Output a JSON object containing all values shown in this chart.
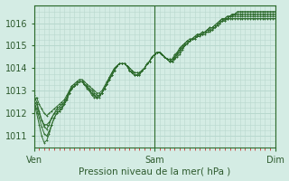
{
  "xlabel": "Pression niveau de la mer( hPa )",
  "background_color": "#d4ece4",
  "grid_color": "#b8d8ce",
  "line_color": "#2d6b2d",
  "tick_color": "#cc3333",
  "text_color": "#2d5a2d",
  "ylim": [
    1010.5,
    1016.8
  ],
  "yticks": [
    1011,
    1012,
    1013,
    1014,
    1015,
    1016
  ],
  "xtick_positions": [
    0,
    48,
    96
  ],
  "xtick_labels": [
    "Ven",
    "Sam",
    "Dim"
  ],
  "num_points": 97,
  "series": [
    [
      1012.5,
      1012.7,
      1012.4,
      1012.2,
      1012.0,
      1011.9,
      1012.0,
      1012.1,
      1012.2,
      1012.3,
      1012.4,
      1012.5,
      1012.6,
      1012.8,
      1013.0,
      1013.2,
      1013.3,
      1013.4,
      1013.5,
      1013.5,
      1013.4,
      1013.3,
      1013.2,
      1013.1,
      1013.0,
      1012.9,
      1012.9,
      1013.0,
      1013.2,
      1013.4,
      1013.6,
      1013.8,
      1014.0,
      1014.1,
      1014.2,
      1014.2,
      1014.2,
      1014.1,
      1014.0,
      1013.9,
      1013.8,
      1013.8,
      1013.8,
      1013.9,
      1014.0,
      1014.2,
      1014.3,
      1014.5,
      1014.6,
      1014.7,
      1014.7,
      1014.6,
      1014.5,
      1014.4,
      1014.4,
      1014.3,
      1014.4,
      1014.5,
      1014.6,
      1014.8,
      1015.0,
      1015.1,
      1015.2,
      1015.3,
      1015.3,
      1015.4,
      1015.4,
      1015.5,
      1015.5,
      1015.6,
      1015.6,
      1015.7,
      1015.8,
      1015.9,
      1016.0,
      1016.1,
      1016.1,
      1016.2,
      1016.2,
      1016.2,
      1016.2,
      1016.2,
      1016.2,
      1016.2,
      1016.2,
      1016.2,
      1016.2,
      1016.2,
      1016.2,
      1016.2,
      1016.2,
      1016.2,
      1016.2,
      1016.2,
      1016.2,
      1016.2,
      1016.2
    ],
    [
      1012.5,
      1012.4,
      1012.0,
      1011.7,
      1011.5,
      1011.5,
      1011.6,
      1011.8,
      1012.0,
      1012.1,
      1012.2,
      1012.3,
      1012.5,
      1012.7,
      1012.9,
      1013.1,
      1013.2,
      1013.3,
      1013.4,
      1013.4,
      1013.3,
      1013.2,
      1013.1,
      1013.0,
      1012.9,
      1012.8,
      1012.8,
      1012.9,
      1013.1,
      1013.3,
      1013.6,
      1013.8,
      1014.0,
      1014.1,
      1014.2,
      1014.2,
      1014.2,
      1014.1,
      1014.0,
      1013.9,
      1013.8,
      1013.8,
      1013.8,
      1013.9,
      1014.0,
      1014.2,
      1014.3,
      1014.5,
      1014.6,
      1014.7,
      1014.7,
      1014.6,
      1014.5,
      1014.4,
      1014.3,
      1014.3,
      1014.4,
      1014.6,
      1014.7,
      1014.9,
      1015.0,
      1015.1,
      1015.2,
      1015.3,
      1015.3,
      1015.4,
      1015.5,
      1015.5,
      1015.6,
      1015.6,
      1015.7,
      1015.7,
      1015.8,
      1015.9,
      1016.0,
      1016.1,
      1016.1,
      1016.2,
      1016.3,
      1016.3,
      1016.3,
      1016.3,
      1016.3,
      1016.3,
      1016.3,
      1016.3,
      1016.3,
      1016.3,
      1016.3,
      1016.3,
      1016.3,
      1016.3,
      1016.3,
      1016.3,
      1016.3,
      1016.3,
      1016.3
    ],
    [
      1012.5,
      1012.2,
      1011.8,
      1011.4,
      1011.1,
      1011.0,
      1011.2,
      1011.5,
      1011.8,
      1012.0,
      1012.1,
      1012.2,
      1012.4,
      1012.6,
      1012.9,
      1013.1,
      1013.2,
      1013.3,
      1013.4,
      1013.4,
      1013.3,
      1013.2,
      1013.0,
      1012.9,
      1012.8,
      1012.7,
      1012.8,
      1012.9,
      1013.1,
      1013.3,
      1013.5,
      1013.7,
      1013.9,
      1014.1,
      1014.2,
      1014.2,
      1014.2,
      1014.1,
      1013.9,
      1013.8,
      1013.7,
      1013.7,
      1013.8,
      1013.9,
      1014.0,
      1014.2,
      1014.3,
      1014.5,
      1014.6,
      1014.7,
      1014.7,
      1014.6,
      1014.5,
      1014.4,
      1014.3,
      1014.3,
      1014.5,
      1014.6,
      1014.8,
      1014.9,
      1015.0,
      1015.1,
      1015.2,
      1015.3,
      1015.4,
      1015.4,
      1015.5,
      1015.5,
      1015.6,
      1015.7,
      1015.7,
      1015.8,
      1015.8,
      1015.9,
      1016.0,
      1016.1,
      1016.2,
      1016.2,
      1016.3,
      1016.3,
      1016.4,
      1016.4,
      1016.4,
      1016.4,
      1016.4,
      1016.4,
      1016.4,
      1016.4,
      1016.4,
      1016.4,
      1016.4,
      1016.4,
      1016.4,
      1016.4,
      1016.4,
      1016.4,
      1016.4
    ],
    [
      1012.5,
      1012.0,
      1011.5,
      1011.0,
      1010.7,
      1010.8,
      1011.1,
      1011.5,
      1011.8,
      1012.0,
      1012.1,
      1012.2,
      1012.4,
      1012.6,
      1012.9,
      1013.1,
      1013.2,
      1013.3,
      1013.4,
      1013.4,
      1013.3,
      1013.1,
      1013.0,
      1012.8,
      1012.7,
      1012.7,
      1012.7,
      1012.9,
      1013.1,
      1013.3,
      1013.5,
      1013.7,
      1013.9,
      1014.1,
      1014.2,
      1014.2,
      1014.2,
      1014.1,
      1013.9,
      1013.8,
      1013.7,
      1013.7,
      1013.7,
      1013.9,
      1014.0,
      1014.2,
      1014.3,
      1014.5,
      1014.6,
      1014.7,
      1014.7,
      1014.6,
      1014.5,
      1014.4,
      1014.3,
      1014.4,
      1014.5,
      1014.7,
      1014.8,
      1015.0,
      1015.1,
      1015.2,
      1015.3,
      1015.3,
      1015.4,
      1015.5,
      1015.5,
      1015.6,
      1015.6,
      1015.7,
      1015.8,
      1015.8,
      1015.9,
      1016.0,
      1016.1,
      1016.2,
      1016.2,
      1016.3,
      1016.3,
      1016.4,
      1016.4,
      1016.5,
      1016.5,
      1016.5,
      1016.5,
      1016.5,
      1016.5,
      1016.5,
      1016.5,
      1016.5,
      1016.5,
      1016.5,
      1016.5,
      1016.5,
      1016.5,
      1016.5,
      1016.5
    ],
    [
      1012.8,
      1012.5,
      1012.1,
      1011.7,
      1011.4,
      1011.3,
      1011.5,
      1011.8,
      1012.0,
      1012.2,
      1012.3,
      1012.4,
      1012.5,
      1012.7,
      1013.0,
      1013.2,
      1013.3,
      1013.4,
      1013.4,
      1013.4,
      1013.3,
      1013.2,
      1013.0,
      1012.9,
      1012.8,
      1012.7,
      1012.8,
      1012.9,
      1013.1,
      1013.3,
      1013.5,
      1013.7,
      1013.9,
      1014.1,
      1014.2,
      1014.2,
      1014.2,
      1014.1,
      1013.9,
      1013.8,
      1013.7,
      1013.7,
      1013.7,
      1013.9,
      1014.0,
      1014.2,
      1014.3,
      1014.5,
      1014.6,
      1014.7,
      1014.7,
      1014.6,
      1014.5,
      1014.4,
      1014.4,
      1014.4,
      1014.6,
      1014.7,
      1014.9,
      1015.0,
      1015.1,
      1015.2,
      1015.2,
      1015.3,
      1015.4,
      1015.5,
      1015.5,
      1015.6,
      1015.6,
      1015.7,
      1015.8,
      1015.8,
      1015.9,
      1016.0,
      1016.1,
      1016.2,
      1016.2,
      1016.3,
      1016.3,
      1016.4,
      1016.4,
      1016.5,
      1016.5,
      1016.5,
      1016.5,
      1016.5,
      1016.5,
      1016.5,
      1016.5,
      1016.5,
      1016.5,
      1016.5,
      1016.5,
      1016.5,
      1016.5,
      1016.5,
      1016.5
    ]
  ]
}
